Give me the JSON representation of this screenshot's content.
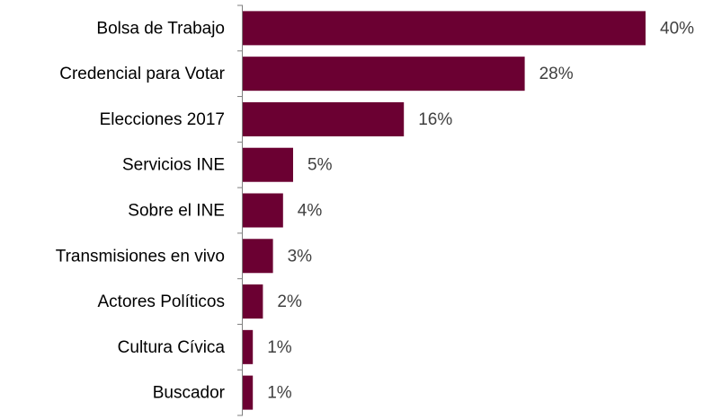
{
  "chart_data": {
    "type": "bar",
    "orientation": "horizontal",
    "categories": [
      "Bolsa de Trabajo",
      "Credencial para Votar",
      "Elecciones 2017",
      "Servicios INE",
      "Sobre el INE",
      "Transmisiones en vivo",
      "Actores Políticos",
      "Cultura Cívica",
      "Buscador"
    ],
    "values": [
      40,
      28,
      16,
      5,
      4,
      3,
      2,
      1,
      1
    ],
    "value_labels": [
      "40%",
      "28%",
      "16%",
      "5%",
      "4%",
      "3%",
      "2%",
      "1%",
      "1%"
    ],
    "color": "#6b0032"
  }
}
